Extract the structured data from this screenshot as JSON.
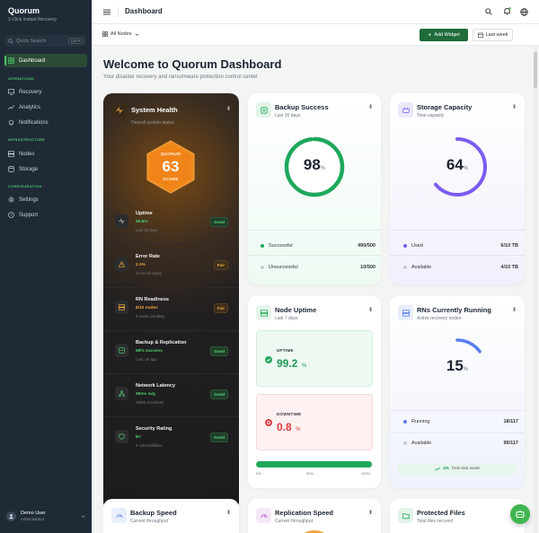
{
  "brand": {
    "title": "Quorum",
    "subtitle": "1-Click Instant Recovery"
  },
  "sidebar": {
    "search_placeholder": "Quick Search",
    "search_shortcut": "Ctrl K",
    "dashboard": "Dashboard",
    "sections": {
      "operations": "OPERATIONS",
      "infrastructure": "INFRASTRUCTURE",
      "configuration": "CONFIGURATION"
    },
    "items": {
      "recovery": "Recovery",
      "analytics": "Analytics",
      "notifications": "Notifications",
      "nodes": "Nodes",
      "storage": "Storage",
      "settings": "Settings",
      "support": "Support"
    },
    "user": {
      "name": "Demo User",
      "role": "Administrator"
    }
  },
  "header": {
    "title": "Dashboard"
  },
  "toolbar": {
    "nodes_filter": "All Nodes",
    "add_widget": "Add Widget",
    "range": "Last week"
  },
  "main": {
    "title": "Welcome to Quorum Dashboard",
    "subtitle": "Your disaster recovery and ransomware protection control center"
  },
  "system_health": {
    "title": "System Health",
    "subtitle": "Overall system status",
    "brand": "QUORUM",
    "score": "63",
    "score_label": "SCORE",
    "score_value": 63,
    "metrics": [
      {
        "name": "Uptime",
        "value": "99.8%",
        "desc": "Last 30 days",
        "badge": "Good"
      },
      {
        "name": "Error Rate",
        "value": "2.3%",
        "desc": "12 errors today",
        "badge": "Fair"
      },
      {
        "name": "RN Readiness",
        "value": "8/10 nodes",
        "desc": "2 nodes pending",
        "badge": "Fair"
      },
      {
        "name": "Backup & Replication",
        "value": "98% success",
        "desc": "Last: 2h ago",
        "badge": "Good"
      },
      {
        "name": "Network Latency",
        "value": "45ms avg",
        "desc": "Within threshold",
        "badge": "Good"
      },
      {
        "name": "Security Rating",
        "value": "B+",
        "desc": "3 vulnerabilities",
        "badge": "Good"
      }
    ]
  },
  "backup_success": {
    "title": "Backup Success",
    "subtitle": "Last 30 days",
    "value": "98",
    "unit": "%",
    "percent": 98,
    "rows": [
      {
        "label": "Successful",
        "value": "490/500"
      },
      {
        "label": "Unsuccessful",
        "value": "10/500"
      }
    ]
  },
  "storage": {
    "title": "Storage Capacity",
    "subtitle": "Total capacity",
    "value": "64",
    "unit": "%",
    "percent": 64,
    "rows": [
      {
        "label": "Used",
        "value": "6/10 TB"
      },
      {
        "label": "Available",
        "value": "4/10 TB"
      }
    ]
  },
  "uptime": {
    "title": "Node Uptime",
    "subtitle": "Last 7 days",
    "uptime_label": "UPTIME",
    "uptime_value": "99.2",
    "downtime_label": "DOWNTIME",
    "downtime_value": "0.8",
    "unit": "%",
    "scale": [
      "0%",
      "50%",
      "100%"
    ],
    "bar_percent": 99.2
  },
  "rns": {
    "title": "RNs Currently Running",
    "subtitle": "Active recovery nodes",
    "value": "15",
    "unit": "%",
    "percent": 15,
    "rows": [
      {
        "label": "Running",
        "value": "18/117"
      },
      {
        "label": "Available",
        "value": "99/117"
      }
    ],
    "trend": "4%",
    "trend_text": "from last week"
  },
  "bottom": [
    {
      "title": "Backup Speed",
      "subtitle": "Current throughput"
    },
    {
      "title": "Replication Speed",
      "subtitle": "Current throughput"
    },
    {
      "title": "Protected Files",
      "subtitle": "Total files secured"
    }
  ],
  "colors": {
    "accent": "#1f6b3a",
    "green": "#1ea85a",
    "purple": "#7b5cf0",
    "blue": "#5a7df0",
    "orange": "#f08a1c",
    "red": "#e0393e"
  }
}
